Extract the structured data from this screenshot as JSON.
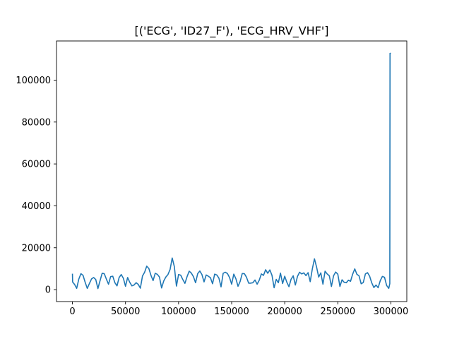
{
  "chart_data": {
    "type": "line",
    "title": "[('ECG', 'ID27_F'), 'ECG_HRV_VHF']",
    "xlabel": "",
    "ylabel": "",
    "xlim": [
      -15000,
      315000
    ],
    "ylim": [
      -5700,
      118700
    ],
    "xticks": [
      0,
      50000,
      100000,
      150000,
      200000,
      250000,
      300000
    ],
    "xtick_labels": [
      "0",
      "50000",
      "100000",
      "150000",
      "200000",
      "250000",
      "300000"
    ],
    "yticks": [
      0,
      20000,
      40000,
      60000,
      80000,
      100000
    ],
    "ytick_labels": [
      "0",
      "20000",
      "40000",
      "60000",
      "80000",
      "100000"
    ],
    "grid": false,
    "color": "#1f77b4",
    "series": [
      {
        "x": [
          0,
          200,
          2000,
          4000,
          6000,
          8000,
          10000,
          12000,
          14000,
          16000,
          18000,
          20000,
          22000,
          24000,
          26000,
          28000,
          30000,
          32000,
          34000,
          36000,
          38000,
          40000,
          42000,
          44000,
          46000,
          48000,
          50000,
          52000,
          54000,
          56000,
          58000,
          60000,
          62000,
          64000,
          66000,
          68000,
          70000,
          72000,
          74000,
          76000,
          78000,
          80000,
          82000,
          84000,
          86000,
          88000,
          90000,
          92000,
          94000,
          96000,
          98000,
          100000,
          102000,
          104000,
          106000,
          108000,
          110000,
          112000,
          114000,
          116000,
          118000,
          120000,
          122000,
          124000,
          126000,
          128000,
          130000,
          132000,
          134000,
          136000,
          138000,
          140000,
          142000,
          144000,
          146000,
          148000,
          150000,
          152000,
          154000,
          156000,
          158000,
          160000,
          162000,
          164000,
          166000,
          168000,
          170000,
          172000,
          174000,
          176000,
          178000,
          180000,
          182000,
          184000,
          186000,
          188000,
          190000,
          192000,
          194000,
          196000,
          198000,
          200000,
          202000,
          204000,
          206000,
          208000,
          210000,
          212000,
          214000,
          216000,
          218000,
          220000,
          222000,
          224000,
          226000,
          228000,
          230000,
          232000,
          234000,
          236000,
          238000,
          240000,
          242000,
          244000,
          246000,
          248000,
          250000,
          252000,
          254000,
          256000,
          258000,
          260000,
          262000,
          264000,
          266000,
          268000,
          270000,
          272000,
          274000,
          276000,
          278000,
          280000,
          282000,
          284000,
          286000,
          288000,
          290000,
          292000,
          294000,
          296000,
          298000,
          299000,
          299200,
          299500,
          300000
        ],
        "y": [
          7600,
          3600,
          2500,
          600,
          5000,
          7600,
          6800,
          3500,
          600,
          2900,
          5100,
          5800,
          4800,
          500,
          4200,
          7800,
          7600,
          5000,
          2600,
          6200,
          6400,
          3300,
          1800,
          5800,
          7200,
          5400,
          1600,
          5800,
          3500,
          1800,
          2200,
          3300,
          2500,
          700,
          6500,
          8300,
          11200,
          10100,
          6800,
          4300,
          7800,
          7300,
          6000,
          800,
          4100,
          6000,
          7200,
          9600,
          15100,
          11000,
          1700,
          7200,
          6900,
          4800,
          3000,
          6200,
          8800,
          7900,
          6200,
          3300,
          7600,
          8900,
          7200,
          3700,
          7000,
          6400,
          5700,
          2800,
          7400,
          7000,
          5500,
          1300,
          7800,
          8300,
          7700,
          5800,
          2600,
          7400,
          5200,
          1600,
          3900,
          7700,
          7600,
          5900,
          3100,
          3100,
          3300,
          4600,
          2600,
          4500,
          7500,
          6800,
          9500,
          7800,
          9400,
          6800,
          900,
          4900,
          3300,
          7900,
          2900,
          6400,
          3500,
          1400,
          5000,
          6600,
          2200,
          6300,
          8300,
          7500,
          8000,
          6700,
          8100,
          3800,
          9900,
          14700,
          10800,
          6000,
          8000,
          2600,
          8800,
          7500,
          6600,
          1500,
          6600,
          8400,
          7400,
          1500,
          4700,
          3500,
          3300,
          4500,
          4000,
          7400,
          9900,
          7300,
          6600,
          2800,
          3400,
          7500,
          8100,
          6400,
          3200,
          1000,
          2200,
          900,
          4300,
          6300,
          5900,
          2000,
          600,
          2900,
          112800,
          112800,
          112800
        ]
      }
    ]
  }
}
